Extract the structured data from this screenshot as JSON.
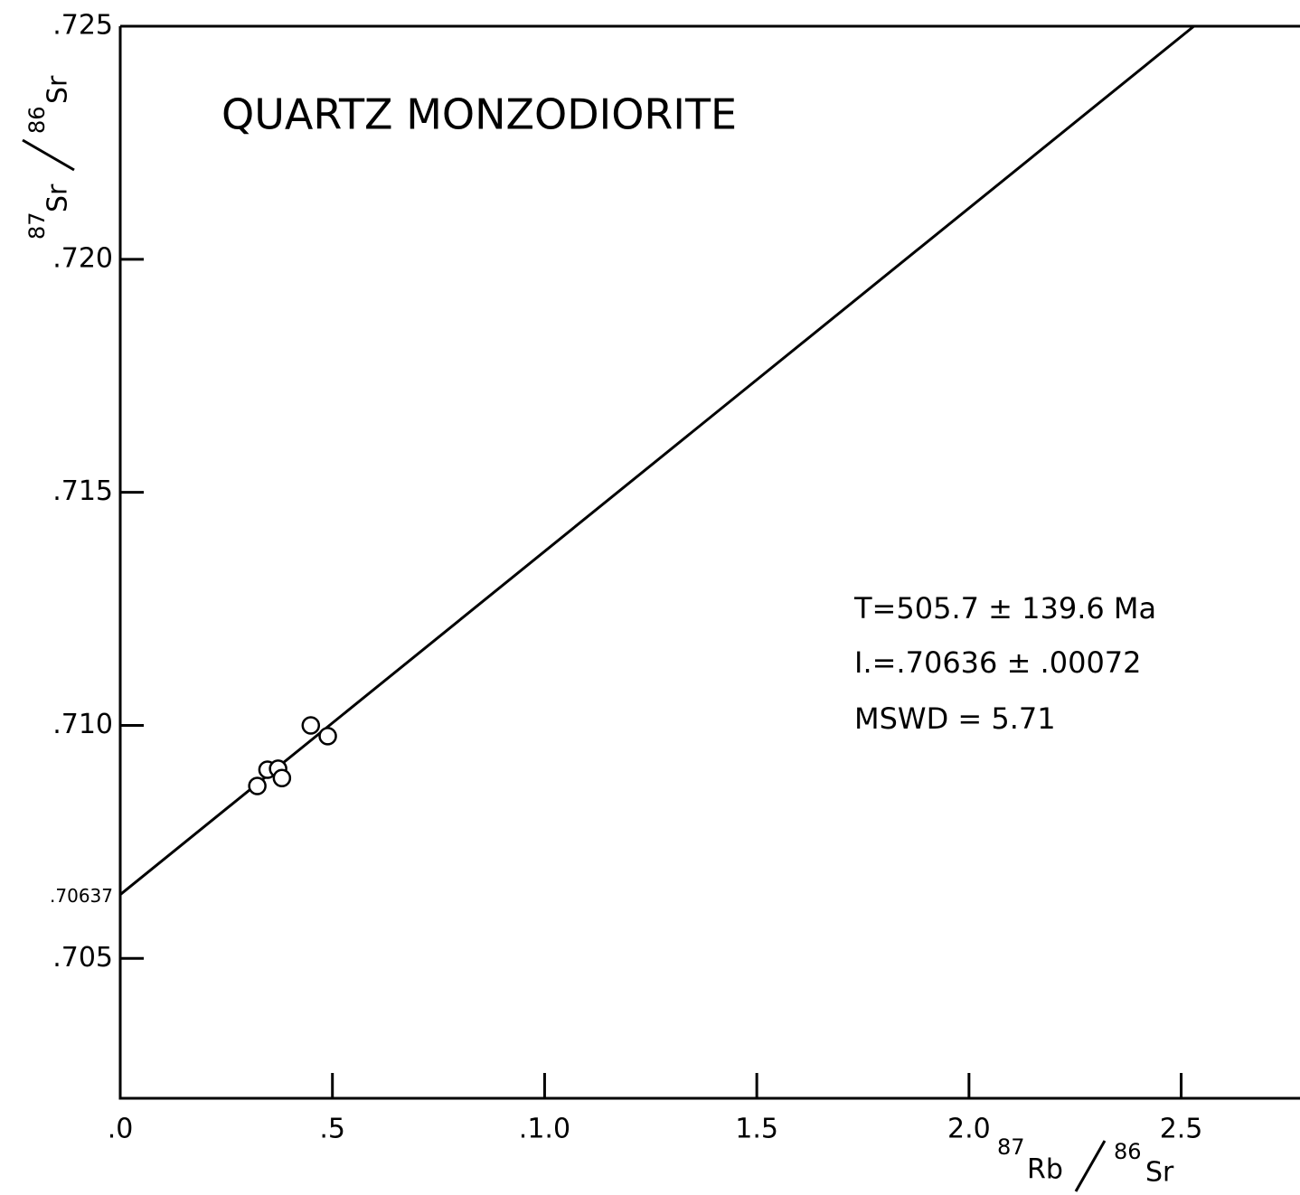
{
  "chart_data": {
    "type": "scatter",
    "title": "QUARTZ MONZODIORITE",
    "xlabel": {
      "num_mass": "87",
      "num_elem": "Rb",
      "den_mass": "86",
      "den_elem": "Sr"
    },
    "ylabel": {
      "num_mass": "87",
      "num_elem": "Sr",
      "den_mass": "86",
      "den_elem": "Sr"
    },
    "annotations": [
      "T=505.7 ± 139.6 Ma",
      "I.=.70636 ± .00072",
      "MSWD = 5.71"
    ],
    "x": [
      0.323,
      0.347,
      0.372,
      0.381,
      0.449,
      0.489
    ],
    "values": [
      0.7087,
      0.70905,
      0.70907,
      0.70887,
      0.71,
      0.70977
    ],
    "color": "#000000",
    "fit_line": {
      "x": [
        0,
        2.53
      ],
      "values": [
        0.70637,
        0.725
      ]
    },
    "xlim": [
      0,
      2.78
    ],
    "ylim": [
      0.702,
      0.725
    ],
    "xticks": [
      {
        "value": 0,
        "label": ".0"
      },
      {
        "value": 0.5,
        "label": ".5"
      },
      {
        "value": 1.0,
        "label": ".1.0"
      },
      {
        "value": 1.5,
        "label": "1.5"
      },
      {
        "value": 2.0,
        "label": "2.0"
      },
      {
        "value": 2.5,
        "label": "2.5"
      }
    ],
    "yticks": [
      {
        "value": 0.705,
        "label": ".705"
      },
      {
        "value": 0.71,
        "label": ".710"
      },
      {
        "value": 0.715,
        "label": ".715"
      },
      {
        "value": 0.72,
        "label": ".720"
      },
      {
        "value": 0.725,
        "label": ".725"
      }
    ],
    "intercept_label": {
      "value": 0.70637,
      "label": ".70637"
    }
  }
}
